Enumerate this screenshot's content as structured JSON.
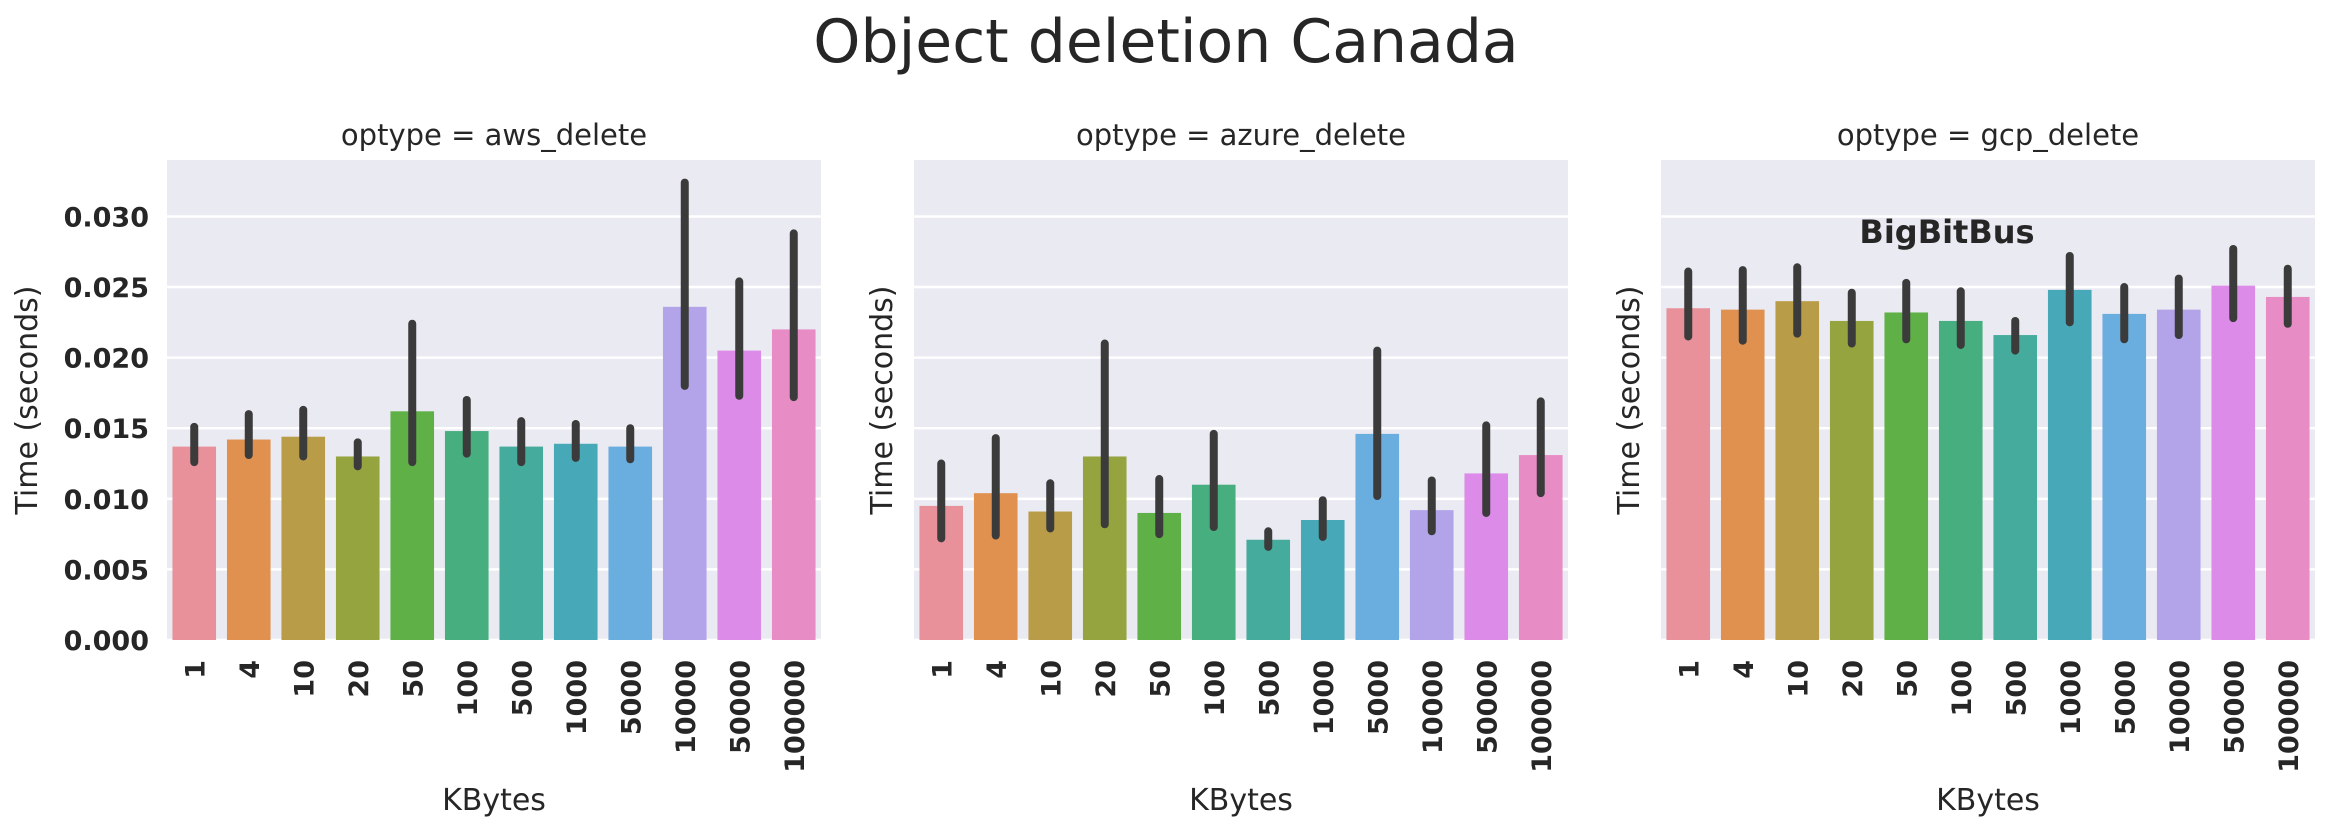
{
  "title": "Object deletion Canada",
  "watermark": "BigBitBus",
  "colors": {
    "panel_bg": "#eaeaf2",
    "grid": "#ffffff",
    "error_bar": "#3b3b3b",
    "palette": [
      "#e8919b",
      "#e0914f",
      "#b99c48",
      "#96a440",
      "#5fb047",
      "#47ae7f",
      "#45ab9c",
      "#47a9b8",
      "#6aaee0",
      "#b3a4ea",
      "#dd8be8",
      "#e88cc6"
    ]
  },
  "chart_data": [
    {
      "type": "bar",
      "title": "optype = aws_delete",
      "xlabel": "KBytes",
      "ylabel": "Time (seconds)",
      "ylim": [
        0,
        0.034
      ],
      "yticks": [
        "0.000",
        "0.005",
        "0.010",
        "0.015",
        "0.020",
        "0.025",
        "0.030"
      ],
      "show_yticklabels": true,
      "grid": true,
      "categories": [
        "1",
        "4",
        "10",
        "20",
        "50",
        "100",
        "500",
        "1000",
        "5000",
        "10000",
        "50000",
        "100000"
      ],
      "values": [
        0.0137,
        0.0142,
        0.0144,
        0.013,
        0.0162,
        0.0148,
        0.0137,
        0.0139,
        0.0137,
        0.0236,
        0.0205,
        0.022
      ],
      "ci_low": [
        0.0126,
        0.0131,
        0.013,
        0.0123,
        0.0126,
        0.0132,
        0.0126,
        0.0129,
        0.0128,
        0.018,
        0.0173,
        0.0172
      ],
      "ci_high": [
        0.0151,
        0.016,
        0.0163,
        0.014,
        0.0224,
        0.017,
        0.0155,
        0.0153,
        0.015,
        0.0324,
        0.0254,
        0.0288
      ]
    },
    {
      "type": "bar",
      "title": "optype = azure_delete",
      "xlabel": "KBytes",
      "ylabel": "Time (seconds)",
      "ylim": [
        0,
        0.034
      ],
      "yticks": [
        "0.000",
        "0.005",
        "0.010",
        "0.015",
        "0.020",
        "0.025",
        "0.030"
      ],
      "show_yticklabels": false,
      "grid": true,
      "categories": [
        "1",
        "4",
        "10",
        "20",
        "50",
        "100",
        "500",
        "1000",
        "5000",
        "10000",
        "50000",
        "100000"
      ],
      "values": [
        0.0095,
        0.0104,
        0.0091,
        0.013,
        0.009,
        0.011,
        0.0071,
        0.0085,
        0.0146,
        0.0092,
        0.0118,
        0.0131
      ],
      "ci_low": [
        0.0072,
        0.0074,
        0.0079,
        0.0082,
        0.0075,
        0.008,
        0.0066,
        0.0073,
        0.0102,
        0.0077,
        0.009,
        0.0104
      ],
      "ci_high": [
        0.0125,
        0.0143,
        0.0111,
        0.021,
        0.0114,
        0.0146,
        0.0077,
        0.0099,
        0.0205,
        0.0113,
        0.0152,
        0.0169
      ]
    },
    {
      "type": "bar",
      "title": "optype = gcp_delete",
      "xlabel": "KBytes",
      "ylabel": "Time (seconds)",
      "ylim": [
        0,
        0.034
      ],
      "yticks": [
        "0.000",
        "0.005",
        "0.010",
        "0.015",
        "0.020",
        "0.025",
        "0.030"
      ],
      "show_yticklabels": false,
      "grid": true,
      "categories": [
        "1",
        "4",
        "10",
        "20",
        "50",
        "100",
        "500",
        "1000",
        "5000",
        "10000",
        "50000",
        "100000"
      ],
      "values": [
        0.0235,
        0.0234,
        0.024,
        0.0226,
        0.0232,
        0.0226,
        0.0216,
        0.0248,
        0.0231,
        0.0234,
        0.0251,
        0.0243
      ],
      "ci_low": [
        0.0215,
        0.0212,
        0.0217,
        0.021,
        0.0213,
        0.0209,
        0.0205,
        0.0225,
        0.0213,
        0.0216,
        0.0228,
        0.0224
      ],
      "ci_high": [
        0.0261,
        0.0262,
        0.0264,
        0.0246,
        0.0253,
        0.0247,
        0.0226,
        0.0272,
        0.025,
        0.0256,
        0.0277,
        0.0263
      ]
    }
  ]
}
